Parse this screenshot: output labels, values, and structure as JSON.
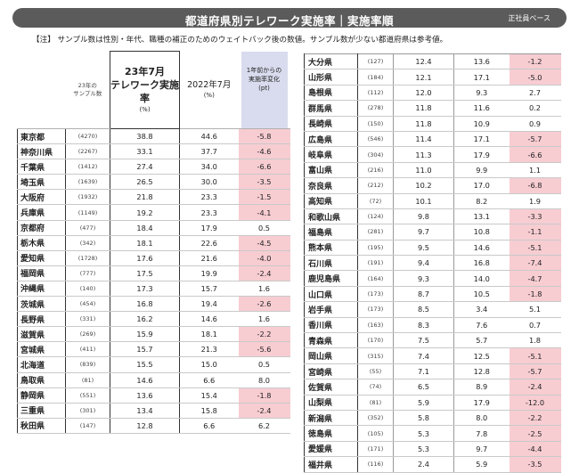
{
  "header": {
    "title": "都道府県別テレワーク実施率｜実施率順",
    "badge": "正社員ベース"
  },
  "note": "【注】 サンプル数は性別・年代、職種の補正のためのウェイトバック後の数値。サンプル数が少ない都道府県は参考値。",
  "table_header": {
    "sample_l1": "23年の",
    "sample_l2": "サンプル数",
    "main_l1": "23年7月",
    "main_l2": "テレワーク実施率",
    "main_unit": "(%)",
    "y2022": "2022年7月",
    "y2022_unit": "(%)",
    "change_l1": "1年前からの",
    "change_l2": "実施率変化",
    "change_unit": "(pt)"
  },
  "colors": {
    "negative_bg": "#f7cdd2",
    "header_bar": "#5b5b5b",
    "change_header_bg": "#d9dcee"
  },
  "left_rows": [
    {
      "pref": "東京都",
      "samp": "(4270)",
      "v23": "38.8",
      "v22": "44.6",
      "chg": "-5.8"
    },
    {
      "pref": "神奈川県",
      "samp": "(2267)",
      "v23": "33.1",
      "v22": "37.7",
      "chg": "-4.6"
    },
    {
      "pref": "千葉県",
      "samp": "(1412)",
      "v23": "27.4",
      "v22": "34.0",
      "chg": "-6.6"
    },
    {
      "pref": "埼玉県",
      "samp": "(1639)",
      "v23": "26.5",
      "v22": "30.0",
      "chg": "-3.5"
    },
    {
      "pref": "大阪府",
      "samp": "(1932)",
      "v23": "21.8",
      "v22": "23.3",
      "chg": "-1.5"
    },
    {
      "pref": "兵庫県",
      "samp": "(1149)",
      "v23": "19.2",
      "v22": "23.3",
      "chg": "-4.1"
    },
    {
      "pref": "京都府",
      "samp": "(477)",
      "v23": "18.4",
      "v22": "17.9",
      "chg": "0.5"
    },
    {
      "pref": "栃木県",
      "samp": "(342)",
      "v23": "18.1",
      "v22": "22.6",
      "chg": "-4.5"
    },
    {
      "pref": "愛知県",
      "samp": "(1728)",
      "v23": "17.6",
      "v22": "21.6",
      "chg": "-4.0"
    },
    {
      "pref": "福岡県",
      "samp": "(777)",
      "v23": "17.5",
      "v22": "19.9",
      "chg": "-2.4"
    },
    {
      "pref": "沖縄県",
      "samp": "(140)",
      "v23": "17.3",
      "v22": "15.7",
      "chg": "1.6"
    },
    {
      "pref": "茨城県",
      "samp": "(454)",
      "v23": "16.8",
      "v22": "19.4",
      "chg": "-2.6"
    },
    {
      "pref": "長野県",
      "samp": "(331)",
      "v23": "16.2",
      "v22": "14.6",
      "chg": "1.6"
    },
    {
      "pref": "滋賀県",
      "samp": "(269)",
      "v23": "15.9",
      "v22": "18.1",
      "chg": "-2.2"
    },
    {
      "pref": "宮城県",
      "samp": "(411)",
      "v23": "15.7",
      "v22": "21.3",
      "chg": "-5.6"
    },
    {
      "pref": "北海道",
      "samp": "(839)",
      "v23": "15.5",
      "v22": "15.0",
      "chg": "0.5"
    },
    {
      "pref": "鳥取県",
      "samp": "(81)",
      "v23": "14.6",
      "v22": "6.6",
      "chg": "8.0"
    },
    {
      "pref": "静岡県",
      "samp": "(551)",
      "v23": "13.6",
      "v22": "15.4",
      "chg": "-1.8"
    },
    {
      "pref": "三重県",
      "samp": "(301)",
      "v23": "13.4",
      "v22": "15.8",
      "chg": "-2.4"
    },
    {
      "pref": "秋田県",
      "samp": "(147)",
      "v23": "12.8",
      "v22": "6.6",
      "chg": "6.2"
    }
  ],
  "right_rows": [
    {
      "pref": "大分県",
      "samp": "(127)",
      "v23": "12.4",
      "v22": "13.6",
      "chg": "-1.2"
    },
    {
      "pref": "山形県",
      "samp": "(184)",
      "v23": "12.1",
      "v22": "17.1",
      "chg": "-5.0"
    },
    {
      "pref": "島根県",
      "samp": "(112)",
      "v23": "12.0",
      "v22": "9.3",
      "chg": "2.7"
    },
    {
      "pref": "群馬県",
      "samp": "(278)",
      "v23": "11.8",
      "v22": "11.6",
      "chg": "0.2"
    },
    {
      "pref": "長崎県",
      "samp": "(150)",
      "v23": "11.8",
      "v22": "10.9",
      "chg": "0.9"
    },
    {
      "pref": "広島県",
      "samp": "(546)",
      "v23": "11.4",
      "v22": "17.1",
      "chg": "-5.7"
    },
    {
      "pref": "岐阜県",
      "samp": "(304)",
      "v23": "11.3",
      "v22": "17.9",
      "chg": "-6.6"
    },
    {
      "pref": "富山県",
      "samp": "(216)",
      "v23": "11.0",
      "v22": "9.9",
      "chg": "1.1"
    },
    {
      "pref": "奈良県",
      "samp": "(212)",
      "v23": "10.2",
      "v22": "17.0",
      "chg": "-6.8"
    },
    {
      "pref": "高知県",
      "samp": "(72)",
      "v23": "10.1",
      "v22": "8.2",
      "chg": "1.9"
    },
    {
      "pref": "和歌山県",
      "samp": "(124)",
      "v23": "9.8",
      "v22": "13.1",
      "chg": "-3.3"
    },
    {
      "pref": "福島県",
      "samp": "(281)",
      "v23": "9.7",
      "v22": "10.8",
      "chg": "-1.1"
    },
    {
      "pref": "熊本県",
      "samp": "(195)",
      "v23": "9.5",
      "v22": "14.6",
      "chg": "-5.1"
    },
    {
      "pref": "石川県",
      "samp": "(191)",
      "v23": "9.4",
      "v22": "16.8",
      "chg": "-7.4"
    },
    {
      "pref": "鹿児島県",
      "samp": "(164)",
      "v23": "9.3",
      "v22": "14.0",
      "chg": "-4.7"
    },
    {
      "pref": "山口県",
      "samp": "(173)",
      "v23": "8.7",
      "v22": "10.5",
      "chg": "-1.8"
    },
    {
      "pref": "岩手県",
      "samp": "(173)",
      "v23": "8.5",
      "v22": "3.4",
      "chg": "5.1"
    },
    {
      "pref": "香川県",
      "samp": "(163)",
      "v23": "8.3",
      "v22": "7.6",
      "chg": "0.7"
    },
    {
      "pref": "青森県",
      "samp": "(170)",
      "v23": "7.5",
      "v22": "5.7",
      "chg": "1.8"
    },
    {
      "pref": "岡山県",
      "samp": "(315)",
      "v23": "7.4",
      "v22": "12.5",
      "chg": "-5.1"
    },
    {
      "pref": "宮崎県",
      "samp": "(55)",
      "v23": "7.1",
      "v22": "12.8",
      "chg": "-5.7"
    },
    {
      "pref": "佐賀県",
      "samp": "(74)",
      "v23": "6.5",
      "v22": "8.9",
      "chg": "-2.4"
    },
    {
      "pref": "山梨県",
      "samp": "(81)",
      "v23": "5.9",
      "v22": "17.9",
      "chg": "-12.0"
    },
    {
      "pref": "新潟県",
      "samp": "(352)",
      "v23": "5.8",
      "v22": "8.0",
      "chg": "-2.2"
    },
    {
      "pref": "徳島県",
      "samp": "(105)",
      "v23": "5.3",
      "v22": "7.8",
      "chg": "-2.5"
    },
    {
      "pref": "愛媛県",
      "samp": "(171)",
      "v23": "5.3",
      "v22": "9.7",
      "chg": "-4.4"
    },
    {
      "pref": "福井県",
      "samp": "(116)",
      "v23": "2.4",
      "v22": "5.9",
      "chg": "-3.5"
    }
  ]
}
